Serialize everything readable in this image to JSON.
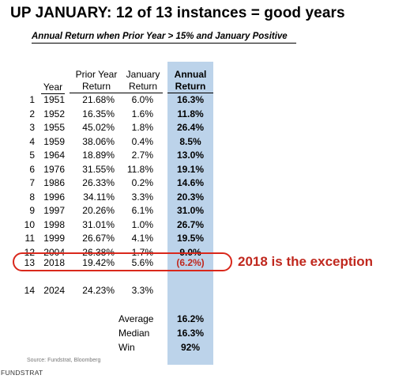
{
  "title": "UP JANUARY: 12 of 13 instances = good years",
  "subtitle": "Annual Return when Prior Year > 15% and January Positive",
  "headers": {
    "year": "Year",
    "prior_line1": "Prior Year",
    "prior_line2": "Return",
    "jan_line1": "January",
    "jan_line2": "Return",
    "annual_line1": "Annual",
    "annual_line2": "Return"
  },
  "rows": [
    {
      "num": "1",
      "year": "1951",
      "prior": "21.68%",
      "jan": "6.0%",
      "annual": "16.3%"
    },
    {
      "num": "2",
      "year": "1952",
      "prior": "16.35%",
      "jan": "1.6%",
      "annual": "11.8%"
    },
    {
      "num": "3",
      "year": "1955",
      "prior": "45.02%",
      "jan": "1.8%",
      "annual": "26.4%"
    },
    {
      "num": "4",
      "year": "1959",
      "prior": "38.06%",
      "jan": "0.4%",
      "annual": "8.5%"
    },
    {
      "num": "5",
      "year": "1964",
      "prior": "18.89%",
      "jan": "2.7%",
      "annual": "13.0%"
    },
    {
      "num": "6",
      "year": "1976",
      "prior": "31.55%",
      "jan": "11.8%",
      "annual": "19.1%"
    },
    {
      "num": "7",
      "year": "1986",
      "prior": "26.33%",
      "jan": "0.2%",
      "annual": "14.6%"
    },
    {
      "num": "8",
      "year": "1996",
      "prior": "34.11%",
      "jan": "3.3%",
      "annual": "20.3%"
    },
    {
      "num": "9",
      "year": "1997",
      "prior": "20.26%",
      "jan": "6.1%",
      "annual": "31.0%"
    },
    {
      "num": "10",
      "year": "1998",
      "prior": "31.01%",
      "jan": "1.0%",
      "annual": "26.7%"
    },
    {
      "num": "11",
      "year": "1999",
      "prior": "26.67%",
      "jan": "4.1%",
      "annual": "19.5%"
    },
    {
      "num": "12",
      "year": "2004",
      "prior": "26.38%",
      "jan": "1.7%",
      "annual": "9.0%"
    },
    {
      "num": "13",
      "year": "2018",
      "prior": "19.42%",
      "jan": "5.6%",
      "annual": "(6.2%)"
    }
  ],
  "row_2024": {
    "num": "14",
    "year": "2024",
    "prior": "24.23%",
    "jan": "3.3%",
    "annual": ""
  },
  "stats": [
    {
      "label": "Average",
      "value": "16.2%"
    },
    {
      "label": "Median",
      "value": "16.3%"
    },
    {
      "label": "Win",
      "value": "92%"
    }
  ],
  "callout": "2018 is the exception",
  "source": "Source: Fundstrat, Bloomberg",
  "brand": "FUNDSTRAT",
  "colors": {
    "highlight_column": "#bcd3ea",
    "exception_red": "#c0281e"
  }
}
